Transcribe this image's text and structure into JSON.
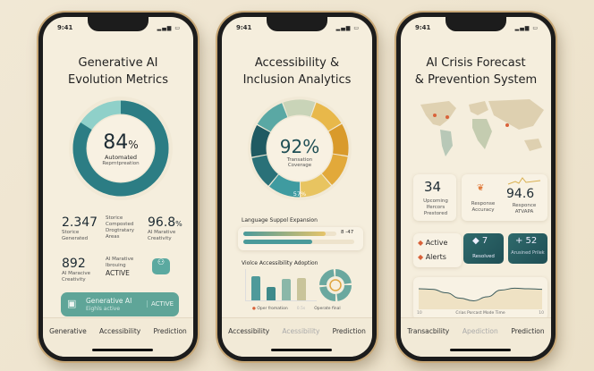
{
  "status_bar": {
    "time": "9:41",
    "signal": "▂▄▆ ▭"
  },
  "phones": [
    {
      "title_line1": "Generative AI",
      "title_line2": "Evolution Metrics",
      "donut": {
        "value": "84",
        "unit": "%",
        "fraction": 0.84,
        "label1": "Automated",
        "label2": "Reprntpreation",
        "colors": [
          "#2c7d84",
          "#8fd0c9"
        ]
      },
      "stats": [
        {
          "value": "2.347",
          "label": "Storice Generated"
        },
        {
          "label": "Storice Composted Drogtratary Areas"
        },
        {
          "value": "96.8",
          "unit": "%",
          "label": "AI Marative Creativity"
        },
        {
          "value": "892",
          "label": "AI Maracive Creativity"
        },
        {
          "label": "AI Marative Ibrouing",
          "status": "ACTIVE"
        }
      ],
      "banner": {
        "title": "Generative AI",
        "subtitle": "Eighls active",
        "status": "ACTIVE",
        "icon": "chip-icon",
        "icon2": "people-icon"
      },
      "tabs": [
        "Generative",
        "Accessibility",
        "Prediction"
      ]
    },
    {
      "title_line1": "Accessibility &",
      "title_line2": "Inclusion Analytics",
      "donut": {
        "value": "92%",
        "label1": "Transation",
        "label2": "Coverage",
        "inner_label": "57%",
        "colors": [
          "#3f9ba0",
          "#2a7178",
          "#1f5a62",
          "#5aa8a4",
          "#c9d4b8",
          "#e8b84a",
          "#d99a2b",
          "#e2a93a",
          "#e8c460"
        ]
      },
      "language": {
        "label": "Language Suppol Expansion",
        "value": "8 -47",
        "bar1": 0.88,
        "bar2": 0.62
      },
      "voice": {
        "label": "Violce Accessibility Adoption",
        "bars": [
          0.8,
          0.45,
          0.7,
          0.75
        ],
        "legend": [
          "Oper fromation",
          "0.5s",
          "Operate final"
        ]
      },
      "tabs": [
        "Accessibility",
        "Acessibility",
        "Prediction"
      ]
    },
    {
      "title_line1": "AI Crisis Forecast",
      "title_line2": "& Prevention System",
      "cards": [
        {
          "value": "34",
          "label": "Upcoming Ifercors Prestored"
        },
        {
          "label": "Response Accuracy",
          "icon": "alert-icon"
        },
        {
          "value": "94.6",
          "label": "Responce ATVAPA"
        }
      ],
      "alerts": [
        "Active",
        "Alerts"
      ],
      "resolved": {
        "value": "7",
        "label": "Resolved"
      },
      "risk": {
        "value": "+ 52",
        "label": "Arusined Prilek"
      },
      "chart": {
        "caption": "Crias Porcast Mode Time",
        "left_tick": "10",
        "right_tick": "10",
        "values": [
          0.7,
          0.68,
          0.55,
          0.35,
          0.25,
          0.4,
          0.65,
          0.72,
          0.7,
          0.68
        ]
      },
      "tabs": [
        "Transacbility",
        "Apediction",
        "Prediction"
      ]
    }
  ]
}
